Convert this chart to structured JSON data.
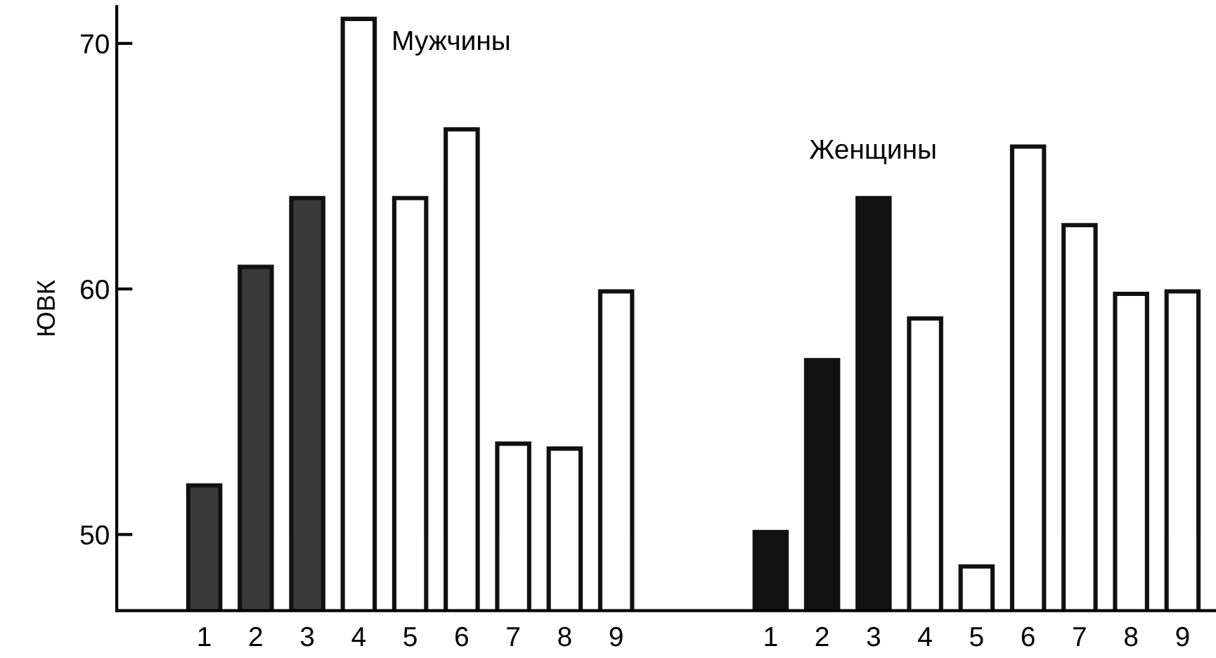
{
  "chart_data": {
    "type": "bar",
    "ylabel": "ЮВК",
    "annotations": [
      "Мужчины",
      "Женщины"
    ],
    "categories": [
      "1",
      "2",
      "3",
      "4",
      "5",
      "6",
      "7",
      "8",
      "9",
      null,
      null,
      "1",
      "2",
      "3",
      "4",
      "5",
      "6",
      "7",
      "8",
      "9"
    ],
    "values": [
      52.0,
      60.9,
      63.7,
      71.0,
      63.7,
      66.5,
      53.7,
      53.5,
      59.9,
      null,
      null,
      50.1,
      57.1,
      63.7,
      58.8,
      48.7,
      65.8,
      62.6,
      59.8,
      59.9
    ],
    "colors": [
      "#3a3a3a",
      "#3a3a3a",
      "#3a3a3a",
      "#ffffff",
      "#ffffff",
      "#ffffff",
      "#ffffff",
      "#ffffff",
      "#ffffff",
      null,
      null,
      "#111111",
      "#111111",
      "#111111",
      "#ffffff",
      "#ffffff",
      "#ffffff",
      "#ffffff",
      "#ffffff",
      "#ffffff"
    ],
    "ylim": [
      46.9,
      71.5
    ],
    "yticks": [
      50,
      60,
      70
    ],
    "grid": false
  }
}
